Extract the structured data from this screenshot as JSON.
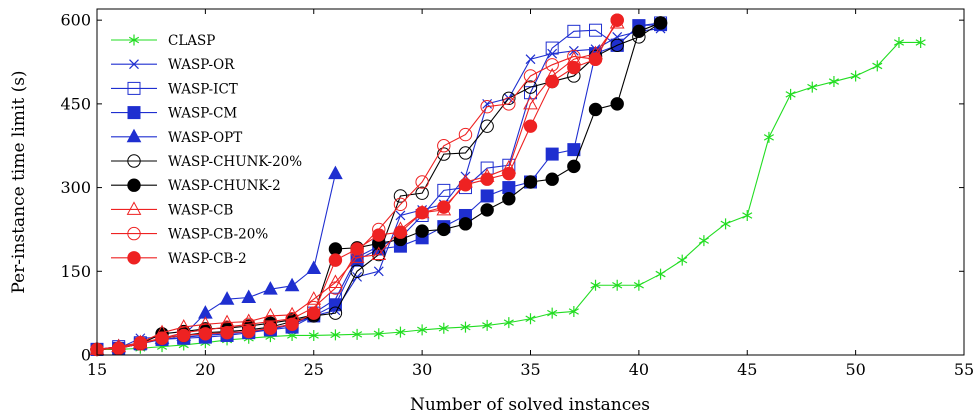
{
  "chart_data": {
    "type": "line",
    "title": "",
    "xlabel": "Number of solved instances",
    "ylabel": "Per-instance time limit (s)",
    "xlim": [
      15,
      55
    ],
    "ylim": [
      0,
      620
    ],
    "xticks": [
      15,
      20,
      25,
      30,
      35,
      40,
      45,
      50,
      55
    ],
    "yticks": [
      0,
      150,
      300,
      450,
      600
    ],
    "xtick_labels": [
      "15",
      "20",
      "25",
      "30",
      "35",
      "40",
      "45",
      "50",
      "55"
    ],
    "ytick_labels": [
      "0",
      "150",
      "300",
      "450",
      "600"
    ],
    "grid": false,
    "legend": "top-left",
    "series": [
      {
        "name": "CLASP",
        "color": "#22dd22",
        "marker": "star",
        "x": [
          15,
          16,
          17,
          18,
          19,
          20,
          21,
          22,
          23,
          24,
          25,
          26,
          27,
          28,
          29,
          30,
          31,
          32,
          33,
          34,
          35,
          36,
          37,
          38,
          39,
          40,
          41,
          42,
          43,
          44,
          45,
          46,
          47,
          48,
          49,
          50,
          51,
          52,
          53
        ],
        "y": [
          10,
          10,
          12,
          15,
          18,
          22,
          27,
          30,
          33,
          35,
          35,
          36,
          37,
          38,
          41,
          45,
          48,
          50,
          53,
          58,
          65,
          75,
          78,
          125,
          125,
          125,
          145,
          170,
          205,
          235,
          250,
          390,
          467,
          480,
          490,
          500,
          518,
          560,
          560
        ]
      },
      {
        "name": "WASP-OR",
        "color": "#1f2fd0",
        "marker": "x",
        "x": [
          15,
          16,
          17,
          18,
          19,
          20,
          21,
          22,
          23,
          24,
          25,
          26,
          27,
          28,
          29,
          30,
          31,
          32,
          33,
          34,
          35,
          36,
          37,
          38,
          39,
          40,
          41
        ],
        "y": [
          10,
          12,
          30,
          32,
          35,
          37,
          40,
          42,
          45,
          55,
          70,
          80,
          140,
          150,
          250,
          260,
          270,
          320,
          450,
          460,
          530,
          540,
          545,
          548,
          570,
          580,
          585
        ]
      },
      {
        "name": "WASP-ICT",
        "color": "#1f2fd0",
        "marker": "square-open",
        "x": [
          15,
          16,
          17,
          18,
          19,
          20,
          21,
          22,
          23,
          24,
          25,
          26,
          27,
          28,
          29,
          30,
          31,
          32,
          33,
          34,
          35,
          36,
          37,
          38,
          39,
          40,
          41
        ],
        "y": [
          10,
          15,
          22,
          28,
          32,
          35,
          38,
          42,
          48,
          55,
          75,
          100,
          175,
          195,
          210,
          250,
          295,
          300,
          335,
          340,
          470,
          550,
          580,
          582,
          555,
          590,
          595
        ]
      },
      {
        "name": "WASP-CM",
        "color": "#1f2fd0",
        "marker": "square",
        "x": [
          15,
          16,
          17,
          18,
          19,
          20,
          21,
          22,
          23,
          24,
          25,
          26,
          27,
          28,
          29,
          30,
          31,
          32,
          33,
          34,
          35,
          36,
          37,
          38,
          39,
          40,
          41
        ],
        "y": [
          10,
          12,
          20,
          28,
          30,
          32,
          35,
          40,
          45,
          50,
          70,
          90,
          170,
          190,
          195,
          210,
          230,
          250,
          285,
          300,
          310,
          360,
          368,
          540,
          555,
          590,
          592
        ]
      },
      {
        "name": "WASP-OPT",
        "color": "#1f2fd0",
        "marker": "triangle",
        "x": [
          15,
          16,
          17,
          18,
          19,
          20,
          21,
          22,
          23,
          24,
          25,
          26
        ],
        "y": [
          10,
          15,
          20,
          30,
          35,
          75,
          100,
          103,
          118,
          124,
          155,
          325
        ]
      },
      {
        "name": "WASP-CHUNK-20%",
        "color": "#000000",
        "marker": "circle-open",
        "x": [
          15,
          16,
          17,
          18,
          19,
          20,
          21,
          22,
          23,
          24,
          25,
          26,
          27,
          28,
          29,
          30,
          31,
          32,
          33,
          34,
          35,
          36,
          37,
          38,
          39,
          40,
          41
        ],
        "y": [
          10,
          12,
          20,
          30,
          35,
          40,
          42,
          45,
          50,
          60,
          70,
          75,
          150,
          180,
          285,
          290,
          360,
          362,
          410,
          460,
          480,
          490,
          500,
          535,
          555,
          570,
          595
        ]
      },
      {
        "name": "WASP-CHUNK-2",
        "color": "#000000",
        "marker": "circle",
        "x": [
          15,
          16,
          17,
          18,
          19,
          20,
          21,
          22,
          23,
          24,
          25,
          26,
          27,
          28,
          29,
          30,
          31,
          32,
          33,
          34,
          35,
          36,
          37,
          38,
          39,
          40,
          41
        ],
        "y": [
          10,
          12,
          20,
          38,
          42,
          47,
          48,
          52,
          57,
          63,
          72,
          190,
          192,
          200,
          207,
          222,
          225,
          235,
          260,
          280,
          310,
          315,
          338,
          440,
          450,
          580,
          595
        ]
      },
      {
        "name": "WASP-CB",
        "color": "#ee2222",
        "marker": "triangle-open",
        "x": [
          15,
          16,
          17,
          18,
          19,
          20,
          21,
          22,
          23,
          24,
          25,
          26,
          27,
          28,
          29,
          30,
          31,
          32,
          33,
          34,
          35,
          36,
          37,
          38,
          39
        ],
        "y": [
          10,
          15,
          22,
          40,
          50,
          55,
          58,
          60,
          70,
          72,
          100,
          130,
          175,
          180,
          225,
          255,
          260,
          310,
          320,
          335,
          450,
          500,
          530,
          540,
          595
        ]
      },
      {
        "name": "WASP-CB-20%",
        "color": "#ee2222",
        "marker": "circle-open",
        "x": [
          15,
          16,
          17,
          18,
          19,
          20,
          21,
          22,
          23,
          24,
          25,
          26,
          27,
          28,
          29,
          30,
          31,
          32,
          33,
          34,
          35,
          36,
          37,
          38,
          39
        ],
        "y": [
          10,
          12,
          20,
          30,
          40,
          45,
          50,
          55,
          60,
          65,
          85,
          120,
          185,
          225,
          270,
          310,
          375,
          395,
          445,
          450,
          500,
          520,
          535,
          530,
          600
        ]
      },
      {
        "name": "WASP-CB-2",
        "color": "#ee2222",
        "marker": "circle",
        "x": [
          15,
          16,
          17,
          18,
          19,
          20,
          21,
          22,
          23,
          24,
          25,
          26,
          27,
          28,
          29,
          30,
          31,
          32,
          33,
          34,
          35,
          36,
          37,
          38,
          39
        ],
        "y": [
          10,
          12,
          22,
          30,
          35,
          38,
          40,
          42,
          48,
          55,
          75,
          170,
          190,
          215,
          220,
          255,
          265,
          305,
          315,
          325,
          410,
          490,
          515,
          530,
          600
        ]
      }
    ]
  }
}
